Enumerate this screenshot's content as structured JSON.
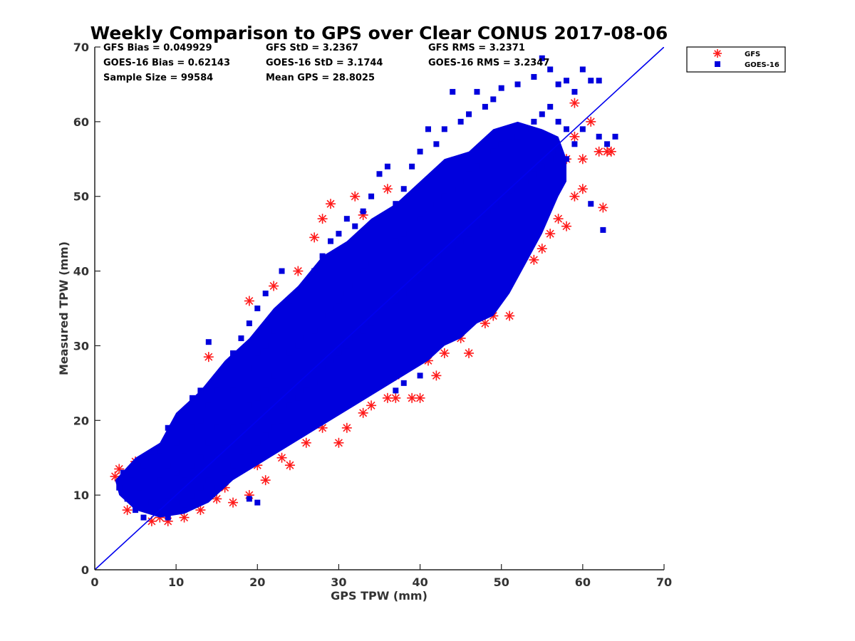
{
  "chart_data": {
    "type": "scatter",
    "title": "Weekly Comparison to GPS over Clear CONUS 2017-08-06",
    "xlabel": "GPS TPW (mm)",
    "ylabel": "Measured TPW (mm)",
    "xlim": [
      0,
      70
    ],
    "ylim": [
      0,
      70
    ],
    "xticks": [
      "0",
      "10",
      "20",
      "30",
      "40",
      "50",
      "60",
      "70"
    ],
    "yticks": [
      "0",
      "10",
      "20",
      "30",
      "40",
      "50",
      "60",
      "70"
    ],
    "grid": false,
    "legend_placement": "outside-right-top",
    "reference_line": {
      "x": [
        0,
        70
      ],
      "y": [
        0,
        70
      ],
      "color": "#0000ee"
    },
    "stats": [
      [
        "GFS Bias = 0.049929",
        "GFS StD = 3.2367",
        "GFS RMS = 3.2371"
      ],
      [
        "GOES-16 Bias = 0.62143",
        "GOES-16 StD = 3.1744",
        "GOES-16 RMS = 3.2347"
      ],
      [
        "Sample Size = 99584",
        "Mean GPS = 28.8025",
        ""
      ]
    ],
    "series": [
      {
        "name": "GFS",
        "marker": "asterisk",
        "color": "#ff1a1a",
        "points": [
          [
            2.5,
            12.5
          ],
          [
            3,
            13.5
          ],
          [
            4,
            8
          ],
          [
            5,
            14.5
          ],
          [
            6,
            13
          ],
          [
            7,
            6.5
          ],
          [
            8,
            7
          ],
          [
            9,
            6.5
          ],
          [
            9,
            17.5
          ],
          [
            11,
            7
          ],
          [
            13,
            8
          ],
          [
            14,
            28.5
          ],
          [
            13,
            23
          ],
          [
            15,
            9.5
          ],
          [
            17,
            9
          ],
          [
            18,
            29
          ],
          [
            19,
            10
          ],
          [
            19,
            36
          ],
          [
            21,
            12
          ],
          [
            22,
            38
          ],
          [
            23,
            15
          ],
          [
            24,
            14
          ],
          [
            25,
            40
          ],
          [
            26,
            17
          ],
          [
            27,
            44.5
          ],
          [
            28,
            47
          ],
          [
            29,
            49
          ],
          [
            30,
            17
          ],
          [
            31,
            19
          ],
          [
            32,
            50
          ],
          [
            33,
            47.5
          ],
          [
            34,
            22
          ],
          [
            35,
            27
          ],
          [
            36,
            23
          ],
          [
            36,
            51
          ],
          [
            37,
            23
          ],
          [
            38,
            49
          ],
          [
            38,
            35
          ],
          [
            39,
            23
          ],
          [
            40,
            23
          ],
          [
            40,
            29
          ],
          [
            41,
            32
          ],
          [
            42,
            26
          ],
          [
            43,
            29
          ],
          [
            44,
            33.5
          ],
          [
            45,
            34.5
          ],
          [
            46,
            29
          ],
          [
            47,
            36
          ],
          [
            48,
            33
          ],
          [
            49,
            34
          ],
          [
            50,
            41
          ],
          [
            51,
            34
          ],
          [
            52,
            44
          ],
          [
            53,
            45
          ],
          [
            54,
            41.5
          ],
          [
            55,
            43
          ],
          [
            56,
            45
          ],
          [
            57,
            47
          ],
          [
            58,
            46
          ],
          [
            59,
            50
          ],
          [
            60,
            51
          ],
          [
            60,
            55
          ],
          [
            61,
            60
          ],
          [
            62,
            56
          ],
          [
            62.5,
            48.5
          ],
          [
            63,
            56
          ],
          [
            63.5,
            56
          ],
          [
            59,
            62.5
          ],
          [
            58,
            55
          ],
          [
            57,
            53
          ],
          [
            8,
            10
          ],
          [
            10,
            13
          ],
          [
            12,
            9
          ],
          [
            16,
            11
          ],
          [
            20,
            14
          ],
          [
            24,
            17.5
          ],
          [
            28,
            19
          ],
          [
            33,
            21
          ],
          [
            37,
            26
          ],
          [
            41,
            28
          ],
          [
            45,
            31
          ],
          [
            49,
            37
          ],
          [
            53,
            48
          ],
          [
            56,
            50
          ],
          [
            59,
            58
          ],
          [
            12,
            21
          ],
          [
            16,
            26
          ],
          [
            20,
            31
          ],
          [
            24,
            35
          ],
          [
            30,
            40
          ]
        ]
      },
      {
        "name": "GOES-16",
        "marker": "square",
        "color": "#0000dd",
        "points": [
          [
            3,
            11
          ],
          [
            3.5,
            13
          ],
          [
            4,
            9.5
          ],
          [
            4.5,
            12
          ],
          [
            5,
            8
          ],
          [
            5.5,
            11
          ],
          [
            6,
            7
          ],
          [
            6,
            14
          ],
          [
            7,
            9
          ],
          [
            7,
            15
          ],
          [
            8,
            8
          ],
          [
            8,
            12
          ],
          [
            8,
            16
          ],
          [
            9,
            7
          ],
          [
            9,
            10
          ],
          [
            9,
            14
          ],
          [
            9,
            19
          ],
          [
            10,
            9
          ],
          [
            10,
            13
          ],
          [
            10,
            17
          ],
          [
            11,
            8
          ],
          [
            11,
            12
          ],
          [
            11,
            16
          ],
          [
            11,
            21
          ],
          [
            12,
            10
          ],
          [
            12,
            14
          ],
          [
            12,
            19
          ],
          [
            12,
            23
          ],
          [
            13,
            11
          ],
          [
            13,
            15
          ],
          [
            13,
            20
          ],
          [
            13,
            24
          ],
          [
            14,
            12
          ],
          [
            14,
            17
          ],
          [
            14,
            22
          ],
          [
            14,
            30.5
          ],
          [
            15,
            11
          ],
          [
            15,
            15
          ],
          [
            15,
            19
          ],
          [
            15,
            24
          ],
          [
            16,
            13
          ],
          [
            16,
            17
          ],
          [
            16,
            21
          ],
          [
            16,
            27
          ],
          [
            17,
            14
          ],
          [
            17,
            19
          ],
          [
            17,
            24
          ],
          [
            17,
            29
          ],
          [
            18,
            15
          ],
          [
            18,
            20
          ],
          [
            18,
            25
          ],
          [
            18,
            31
          ],
          [
            19,
            16
          ],
          [
            19,
            22
          ],
          [
            19,
            27
          ],
          [
            19,
            33
          ],
          [
            20,
            17
          ],
          [
            20,
            23
          ],
          [
            20,
            29
          ],
          [
            20,
            35
          ],
          [
            21,
            18
          ],
          [
            21,
            24
          ],
          [
            21,
            30
          ],
          [
            21,
            37
          ],
          [
            22,
            19
          ],
          [
            22,
            26
          ],
          [
            22,
            32
          ],
          [
            23,
            20
          ],
          [
            23,
            27
          ],
          [
            23,
            34
          ],
          [
            23,
            40
          ],
          [
            24,
            22
          ],
          [
            24,
            29
          ],
          [
            24,
            36
          ],
          [
            25,
            23
          ],
          [
            25,
            30
          ],
          [
            25,
            37
          ],
          [
            26,
            24
          ],
          [
            26,
            31
          ],
          [
            26,
            38
          ],
          [
            27,
            25
          ],
          [
            27,
            32
          ],
          [
            27,
            40
          ],
          [
            28,
            27
          ],
          [
            28,
            34
          ],
          [
            28,
            42
          ],
          [
            29,
            28
          ],
          [
            29,
            35
          ],
          [
            29,
            44
          ],
          [
            30,
            29
          ],
          [
            30,
            36
          ],
          [
            30,
            45
          ],
          [
            31,
            30
          ],
          [
            31,
            37
          ],
          [
            31,
            47
          ],
          [
            32,
            31
          ],
          [
            32,
            38
          ],
          [
            32,
            46
          ],
          [
            33,
            32
          ],
          [
            33,
            40
          ],
          [
            33,
            48
          ],
          [
            34,
            33
          ],
          [
            34,
            41
          ],
          [
            34,
            50
          ],
          [
            35,
            34
          ],
          [
            35,
            42
          ],
          [
            35,
            53
          ],
          [
            36,
            35
          ],
          [
            36,
            43
          ],
          [
            36,
            54
          ],
          [
            37,
            36
          ],
          [
            37,
            44
          ],
          [
            37,
            49
          ],
          [
            38,
            37
          ],
          [
            38,
            45
          ],
          [
            38,
            51
          ],
          [
            39,
            38
          ],
          [
            39,
            46
          ],
          [
            39,
            54
          ],
          [
            40,
            39
          ],
          [
            40,
            47
          ],
          [
            40,
            56
          ],
          [
            41,
            40
          ],
          [
            41,
            48
          ],
          [
            41,
            59
          ],
          [
            42,
            41
          ],
          [
            42,
            49
          ],
          [
            42,
            57
          ],
          [
            43,
            42
          ],
          [
            43,
            50
          ],
          [
            43,
            59
          ],
          [
            44,
            43
          ],
          [
            44,
            51
          ],
          [
            44,
            64
          ],
          [
            45,
            44
          ],
          [
            45,
            52
          ],
          [
            45,
            60
          ],
          [
            46,
            45
          ],
          [
            46,
            53
          ],
          [
            46,
            61
          ],
          [
            47,
            46
          ],
          [
            47,
            54
          ],
          [
            47,
            64
          ],
          [
            48,
            47
          ],
          [
            48,
            55
          ],
          [
            48,
            62
          ],
          [
            49,
            48
          ],
          [
            49,
            56
          ],
          [
            49,
            63
          ],
          [
            50,
            49
          ],
          [
            50,
            57
          ],
          [
            50,
            64.5
          ],
          [
            51,
            50
          ],
          [
            51,
            58
          ],
          [
            52,
            51
          ],
          [
            52,
            58
          ],
          [
            52,
            65
          ],
          [
            53,
            52
          ],
          [
            53,
            59
          ],
          [
            54,
            53
          ],
          [
            54,
            60
          ],
          [
            54,
            66
          ],
          [
            55,
            54
          ],
          [
            55,
            61
          ],
          [
            55,
            68.5
          ],
          [
            56,
            55
          ],
          [
            56,
            62
          ],
          [
            56,
            67
          ],
          [
            57,
            56
          ],
          [
            57,
            60
          ],
          [
            57,
            65
          ],
          [
            58,
            55
          ],
          [
            58,
            59
          ],
          [
            58,
            65.5
          ],
          [
            59,
            57
          ],
          [
            59,
            64
          ],
          [
            60,
            59
          ],
          [
            60,
            67
          ],
          [
            61,
            65.5
          ],
          [
            62,
            58
          ],
          [
            62,
            65.5
          ],
          [
            62.5,
            45.5
          ],
          [
            63,
            57
          ],
          [
            61,
            49
          ],
          [
            64,
            58
          ],
          [
            20,
            9
          ],
          [
            19,
            9.5
          ],
          [
            37,
            24
          ],
          [
            38,
            25
          ],
          [
            40,
            26
          ]
        ]
      }
    ]
  }
}
